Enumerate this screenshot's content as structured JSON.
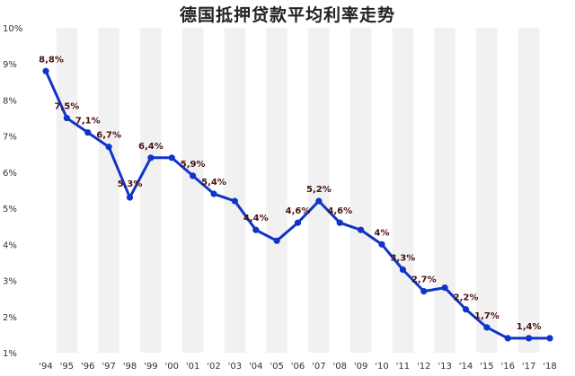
{
  "chart_data": {
    "type": "line",
    "title": "德国抵押贷款平均利率走势",
    "x": [
      "'94",
      "'95",
      "'96",
      "'97",
      "'98",
      "'99",
      "'00",
      "'01",
      "'02",
      "'03",
      "'04",
      "'05",
      "'06",
      "'07",
      "'08",
      "'09",
      "'10",
      "'11",
      "'12",
      "'13",
      "'14",
      "'15",
      "'16",
      "'17",
      "'18"
    ],
    "series": [
      {
        "values": [
          8.8,
          7.5,
          7.1,
          6.7,
          5.3,
          6.4,
          6.4,
          5.9,
          5.4,
          5.2,
          4.4,
          4.1,
          4.6,
          5.2,
          4.6,
          4.4,
          4.0,
          3.3,
          2.7,
          2.8,
          2.2,
          1.7,
          1.4,
          1.4,
          1.4
        ],
        "color": "#1034c8"
      }
    ],
    "data_labels": [
      "8,8%",
      "7,5%",
      "7,1%",
      "6,7%",
      "5,3%",
      "6,4%",
      "",
      "5,9%",
      "5,4%",
      "",
      "4,4%",
      "",
      "4,6%",
      "5,2%",
      "4,6%",
      "",
      "4%",
      "3,3%",
      "2,7%",
      "",
      "2,2%",
      "1,7%",
      "",
      "1,4%",
      ""
    ],
    "y_ticks": [
      "1%",
      "2%",
      "3%",
      "4%",
      "5%",
      "6%",
      "7%",
      "8%",
      "9%",
      "10%"
    ],
    "ylim": [
      1,
      10
    ],
    "xlabel": "",
    "ylabel": "",
    "grid": "vertical alternating bands",
    "legend": "none",
    "colors": {
      "line": "#1034c8",
      "band": "#f1f1f1",
      "label": "#4a1010"
    }
  }
}
